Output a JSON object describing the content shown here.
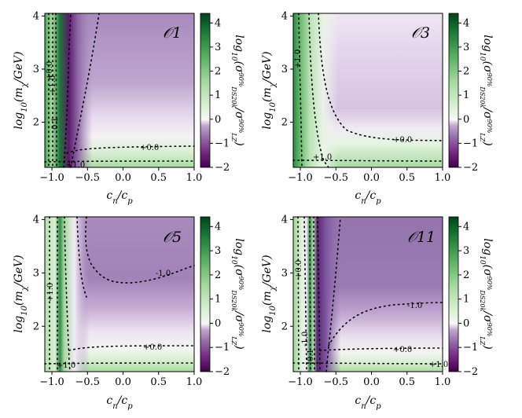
{
  "chart_data": [
    {
      "type": "heatmap",
      "panel_label": "𝒪1",
      "xlabel": "cn/cp",
      "ylabel": "log10(mχ/GeV)",
      "colorbar_label": "log10(σDS20k90% / σLZ90%)",
      "x_range": [
        -1.1,
        1.0
      ],
      "y_range": [
        1.15,
        4.05
      ],
      "x_ticks": [
        "−1.0",
        "−0.5",
        "0.0",
        "0.5",
        "1.0"
      ],
      "y_ticks": [
        "2",
        "3",
        "4"
      ],
      "colorbar_ticks": [
        "4",
        "3",
        "2",
        "1",
        "0",
        "−1",
        "−2"
      ],
      "colorbar_range": [
        -2,
        4.4
      ],
      "contour_labels": [
        "+0.0",
        "-1.0",
        "+1.0",
        "+0.0",
        "+1.0",
        "0.1"
      ]
    },
    {
      "type": "heatmap",
      "panel_label": "𝒪3",
      "xlabel": "cn/cp",
      "ylabel": "log10(mχ/GeV)",
      "colorbar_label": "log10(σDS20k90% / σLZ90%)",
      "x_range": [
        -1.1,
        1.0
      ],
      "y_range": [
        1.15,
        4.05
      ],
      "x_ticks": [
        "−1.0",
        "−0.5",
        "0.0",
        "0.5",
        "1.0"
      ],
      "y_ticks": [
        "2",
        "3",
        "4"
      ],
      "colorbar_ticks": [
        "4",
        "3",
        "2",
        "1",
        "0",
        "−1",
        "−2"
      ],
      "colorbar_range": [
        -2,
        4.4
      ],
      "contour_labels": [
        "+0.0",
        "+1.0",
        "+1.0"
      ]
    },
    {
      "type": "heatmap",
      "panel_label": "𝒪5",
      "xlabel": "cn/cp",
      "ylabel": "log10(mχ/GeV)",
      "colorbar_label": "log10(σDS20k90% / σLZ90%)",
      "x_range": [
        -1.1,
        1.0
      ],
      "y_range": [
        1.15,
        4.05
      ],
      "x_ticks": [
        "−1.0",
        "−0.5",
        "0.0",
        "0.5",
        "1.0"
      ],
      "y_ticks": [
        "2",
        "3",
        "4"
      ],
      "colorbar_ticks": [
        "4",
        "3",
        "2",
        "1",
        "0",
        "−1",
        "−2"
      ],
      "colorbar_range": [
        -2,
        4.4
      ],
      "contour_labels": [
        "-1.0",
        "+0.0",
        "+1.0",
        "+1.0"
      ]
    },
    {
      "type": "heatmap",
      "panel_label": "𝒪11",
      "xlabel": "cn/cp",
      "ylabel": "log10(mχ/GeV)",
      "colorbar_label": "log10(σDS20k90% / σLZ90%)",
      "x_range": [
        -1.1,
        1.0
      ],
      "y_range": [
        1.15,
        4.05
      ],
      "x_ticks": [
        "−1.0",
        "−0.5",
        "0.0",
        "0.5",
        "1.0"
      ],
      "y_ticks": [
        "2",
        "3",
        "4"
      ],
      "colorbar_ticks": [
        "4",
        "3",
        "2",
        "1",
        "0",
        "−1",
        "−2"
      ],
      "colorbar_range": [
        -2,
        4.4
      ],
      "contour_labels": [
        "-1.0",
        "+0.0",
        "+1.0",
        "+0.0",
        "-1.0",
        "0.1"
      ]
    }
  ],
  "colors": {
    "dark_purple": "#40004b",
    "mid_purple": "#9970ab",
    "light_purple": "#e7d4e8",
    "white": "#f7f7f7",
    "light_green": "#d9f0d3",
    "mid_green": "#5aae61",
    "dark_green": "#00441b"
  }
}
